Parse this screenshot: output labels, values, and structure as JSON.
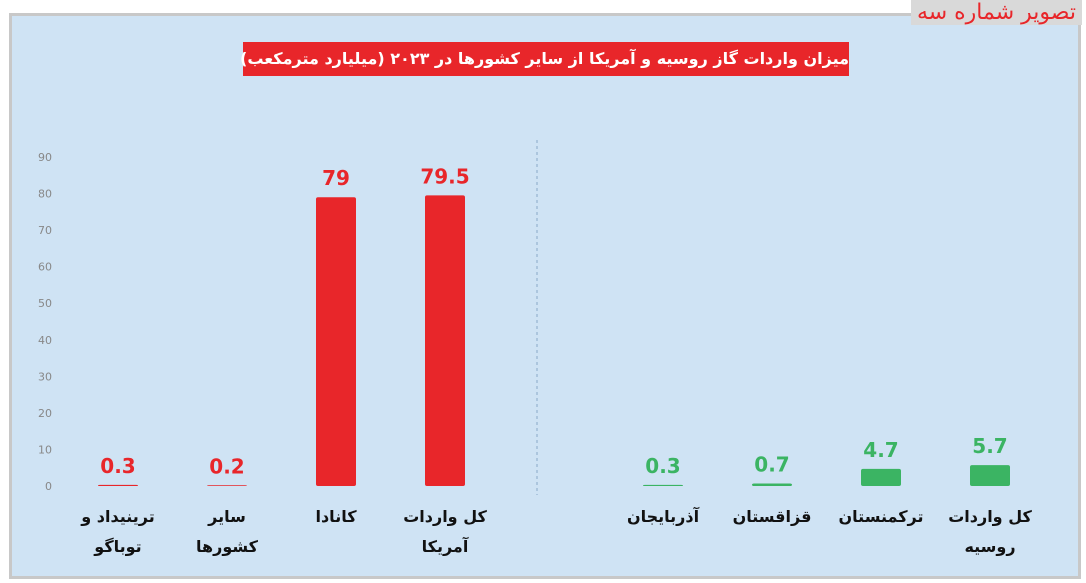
{
  "chart_data": {
    "type": "bar",
    "title": "میزان واردات گاز روسیه و آمریکا از سایر کشورها در ۲۰۲۳ (میلیارد مترمکعب)",
    "annotations": [
      "تصویر شماره سه"
    ],
    "categories": [
      "ترینیداد و توباگو",
      "سایر کشورها",
      "کانادا",
      "کل واردات آمریکا",
      "آذربایجان",
      "قزاقستان",
      "ترکمنستان",
      "کل واردات روسیه"
    ],
    "values": [
      0.3,
      0.2,
      79,
      79.5,
      0.3,
      0.7,
      4.7,
      5.7
    ],
    "colors": [
      "#e8262a",
      "#e8262a",
      "#e8262a",
      "#e8262a",
      "#3bb463",
      "#3bb463",
      "#3bb463",
      "#3bb463"
    ],
    "ylim": [
      0,
      90
    ],
    "yticks": [
      0,
      10,
      20,
      30,
      40,
      50,
      60,
      70,
      80,
      90
    ],
    "grid": false
  }
}
